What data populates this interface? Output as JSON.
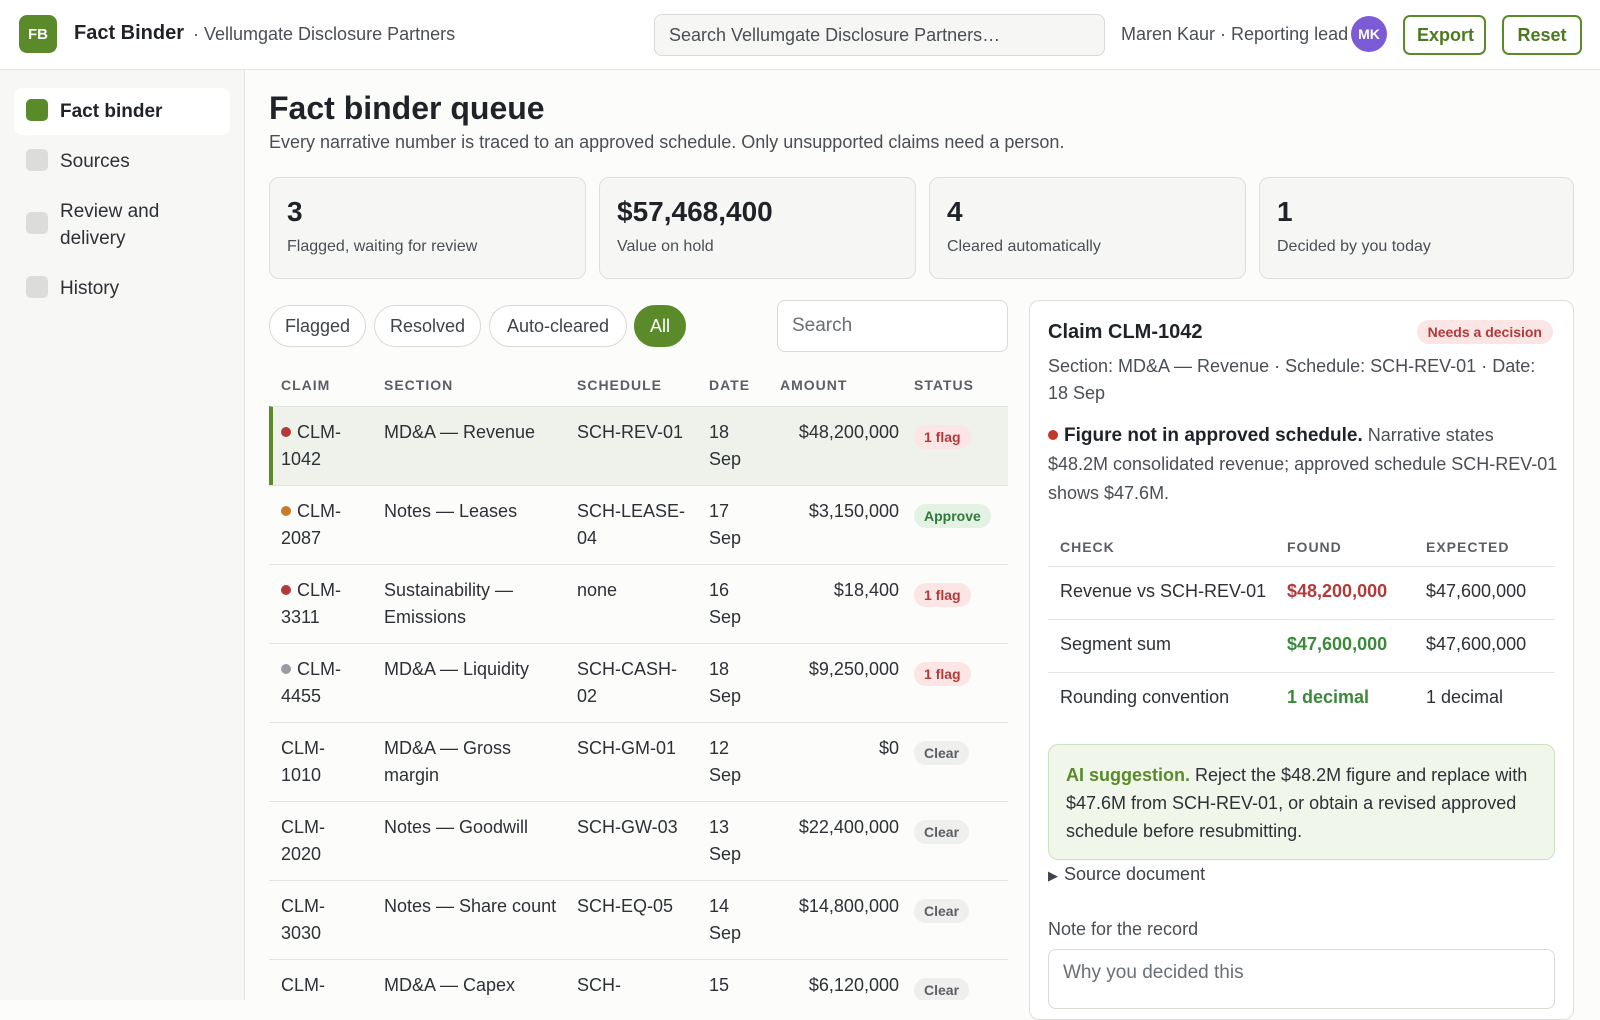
{
  "header": {
    "logo": "FB",
    "app_name": "Fact Binder",
    "org_name": "· Vellumgate Disclosure Partners",
    "search_placeholder": "Search Vellumgate Disclosure Partners…",
    "user": "Maren Kaur · Reporting lead",
    "avatar_initials": "MK",
    "export_label": "Export",
    "reset_label": "Reset"
  },
  "sidebar": {
    "items": [
      {
        "label": "Fact binder",
        "active": true
      },
      {
        "label": "Sources",
        "active": false
      },
      {
        "label": "Review and delivery",
        "active": false
      },
      {
        "label": "History",
        "active": false
      }
    ]
  },
  "page": {
    "title": "Fact binder queue",
    "subtitle": "Every narrative number is traced to an approved schedule. Only unsupported claims need a person."
  },
  "stats": [
    {
      "value": "3",
      "label": "Flagged, waiting for review"
    },
    {
      "value": "$57,468,400",
      "label": "Value on hold"
    },
    {
      "value": "4",
      "label": "Cleared automatically"
    },
    {
      "value": "1",
      "label": "Decided by you today"
    }
  ],
  "filters": {
    "chips": [
      "Flagged",
      "Resolved",
      "Auto-cleared",
      "All"
    ],
    "active": "All",
    "search_placeholder": "Search"
  },
  "table": {
    "columns": [
      "CLAIM",
      "SECTION",
      "SCHEDULE",
      "DATE",
      "AMOUNT",
      "STATUS"
    ],
    "rows": [
      {
        "claim": "CLM-1042",
        "section": "MD&A — Revenue",
        "schedule": "SCH-REV-01",
        "date": "18 Sep",
        "amount": "$48,200,000",
        "status": "1 flag",
        "status_type": "flag",
        "dot": "#b23a3a",
        "selected": true
      },
      {
        "claim": "CLM-2087",
        "section": "Notes — Leases",
        "schedule": "SCH-LEASE-04",
        "date": "17 Sep",
        "amount": "$3,150,000",
        "status": "Approve",
        "status_type": "approve",
        "dot": "#c87b2a",
        "selected": false
      },
      {
        "claim": "CLM-3311",
        "section": "Sustainability — Emissions",
        "schedule": "none",
        "date": "16 Sep",
        "amount": "$18,400",
        "status": "1 flag",
        "status_type": "flag",
        "dot": "#b23a3a",
        "selected": false
      },
      {
        "claim": "CLM-4455",
        "section": "MD&A — Liquidity",
        "schedule": "SCH-CASH-02",
        "date": "18 Sep",
        "amount": "$9,250,000",
        "status": "1 flag",
        "status_type": "flag",
        "dot": "#9a9ca3",
        "selected": false
      },
      {
        "claim": "CLM-1010",
        "section": "MD&A — Gross margin",
        "schedule": "SCH-GM-01",
        "date": "12 Sep",
        "amount": "$0",
        "status": "Clear",
        "status_type": "clear",
        "dot": "",
        "selected": false
      },
      {
        "claim": "CLM-2020",
        "section": "Notes — Goodwill",
        "schedule": "SCH-GW-03",
        "date": "13 Sep",
        "amount": "$22,400,000",
        "status": "Clear",
        "status_type": "clear",
        "dot": "",
        "selected": false
      },
      {
        "claim": "CLM-3030",
        "section": "Notes — Share count",
        "schedule": "SCH-EQ-05",
        "date": "14 Sep",
        "amount": "$14,800,000",
        "status": "Clear",
        "status_type": "clear",
        "dot": "",
        "selected": false
      },
      {
        "claim": "CLM-",
        "section": "MD&A — Capex",
        "schedule": "SCH-",
        "date": "15",
        "amount": "$6,120,000",
        "status": "Clear",
        "status_type": "clear",
        "dot": "",
        "selected": false
      }
    ]
  },
  "detail": {
    "title": "Claim CLM-1042",
    "badge": "Needs a decision",
    "meta": "Section: MD&A — Revenue · Schedule: SCH-REV-01 · Date: 18 Sep",
    "finding_title": "Figure not in approved schedule.",
    "finding_text": " Narrative states $48.2M consolidated revenue; approved schedule SCH-REV-01 shows $47.6M.",
    "checks": {
      "columns": [
        "CHECK",
        "FOUND",
        "EXPECTED"
      ],
      "rows": [
        {
          "check": "Revenue vs SCH-REV-01",
          "found": "$48,200,000",
          "expected": "$47,600,000",
          "found_color": "#b23a3a"
        },
        {
          "check": "Segment sum",
          "found": "$47,600,000",
          "expected": "$47,600,000",
          "found_color": "#3b8a3b"
        },
        {
          "check": "Rounding convention",
          "found": "1 decimal",
          "expected": "1 decimal",
          "found_color": "#3b8a3b"
        }
      ]
    },
    "ai_label": "AI suggestion.",
    "ai_text": " Reject the $48.2M figure and replace with $47.6M from SCH-REV-01, or obtain a revised approved schedule before resubmitting.",
    "source_doc": "Source document",
    "note_label": "Note for the record",
    "note_placeholder": "Why you decided this"
  },
  "colors": {
    "accent": "#5a8a2a",
    "flag": "#b23a3a",
    "approve": "#2f7a3a",
    "avatar": "#7b5bd6"
  }
}
